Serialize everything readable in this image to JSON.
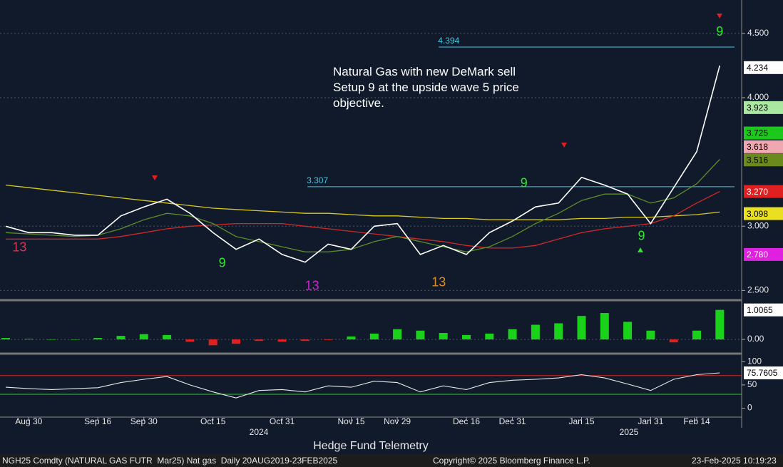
{
  "chart_data": [
    {
      "type": "line",
      "categories": [
        null,
        "Aug 30",
        null,
        null,
        "Sep 16",
        null,
        "Sep 30",
        null,
        null,
        "Oct 15",
        null,
        null,
        "Oct 31",
        null,
        null,
        "Nov 15",
        null,
        "Nov 29",
        null,
        null,
        "Dec 16",
        null,
        "Dec 31",
        null,
        null,
        "Jan 15",
        null,
        null,
        "Jan 31",
        null,
        "Feb 14",
        null
      ],
      "year_labels": [
        "2024",
        "2025"
      ],
      "series": [
        {
          "color": "#d8c820",
          "values": [
            3.32,
            3.3,
            3.28,
            3.26,
            3.24,
            3.22,
            3.2,
            3.18,
            3.16,
            3.14,
            3.13,
            3.12,
            3.11,
            3.1,
            3.1,
            3.09,
            3.08,
            3.08,
            3.07,
            3.06,
            3.06,
            3.05,
            3.05,
            3.05,
            3.05,
            3.06,
            3.06,
            3.07,
            3.07,
            3.08,
            3.09,
            3.11
          ]
        },
        {
          "color": "#d02828",
          "values": [
            2.9,
            2.9,
            2.9,
            2.9,
            2.9,
            2.92,
            2.95,
            2.98,
            3.0,
            3.01,
            3.02,
            3.02,
            3.02,
            3.0,
            2.98,
            2.96,
            2.94,
            2.92,
            2.9,
            2.88,
            2.85,
            2.83,
            2.83,
            2.85,
            2.9,
            2.95,
            2.98,
            3.0,
            3.02,
            3.08,
            3.18,
            3.27
          ]
        },
        {
          "color": "#5c8c2a",
          "values": [
            2.95,
            2.94,
            2.93,
            2.92,
            2.93,
            2.98,
            3.05,
            3.1,
            3.08,
            3.02,
            2.92,
            2.88,
            2.84,
            2.8,
            2.8,
            2.82,
            2.88,
            2.92,
            2.88,
            2.84,
            2.8,
            2.84,
            2.92,
            3.02,
            3.1,
            3.2,
            3.25,
            3.25,
            3.18,
            3.22,
            3.33,
            3.52
          ]
        },
        {
          "color": "#ffffff",
          "values": [
            3.0,
            2.95,
            2.95,
            2.93,
            2.93,
            3.08,
            3.15,
            3.21,
            3.1,
            2.95,
            2.82,
            2.9,
            2.78,
            2.72,
            2.86,
            2.82,
            3.0,
            3.02,
            2.78,
            2.85,
            2.78,
            2.95,
            3.04,
            3.15,
            3.18,
            3.38,
            3.32,
            3.25,
            3.02,
            3.3,
            3.58,
            4.25
          ]
        }
      ],
      "ylim": [
        2.43,
        4.76
      ],
      "yticks": [
        {
          "value": 2.5,
          "label": "2.500"
        },
        {
          "value": 3,
          "label": "3.000"
        },
        {
          "value": 4,
          "label": "4.000"
        },
        {
          "value": 4.5,
          "label": "4.500"
        }
      ],
      "grid": true,
      "reference_lines": [
        {
          "value": 4.394,
          "color": "#40c8e0"
        },
        {
          "value": 3.307,
          "color": "#40c8e0"
        }
      ],
      "price_levels": [
        {
          "value": 4.234,
          "color": "#ffffff",
          "text_color": "#000000"
        },
        {
          "value": 3.923,
          "color": "#a8e8a0",
          "text_color": "#000000"
        },
        {
          "value": 3.725,
          "color": "#1cc81c",
          "text_color": "#000000"
        },
        {
          "value": 3.618,
          "color": "#f0a8b0",
          "text_color": "#000000"
        },
        {
          "value": 3.516,
          "color": "#6a8a1e",
          "text_color": "#000000"
        },
        {
          "value": 3.27,
          "label": "3.270",
          "color": "#e02020",
          "text_color": "#ffffff"
        },
        {
          "value": 3.098,
          "color": "#e8e020",
          "text_color": "#000000"
        },
        {
          "value": 2.78,
          "label": "2.780",
          "color": "#e020e0",
          "text_color": "#ffffff"
        }
      ],
      "counts": [
        {
          "label": "13",
          "x": 0.6,
          "value": 2.83,
          "color": "#e03050"
        },
        {
          "label": "9",
          "x": 9.4,
          "value": 2.71,
          "color": "#2ee62e"
        },
        {
          "label": "13",
          "x": 13.3,
          "value": 2.53,
          "color": "#d020d0"
        },
        {
          "label": "13",
          "x": 18.8,
          "value": 2.56,
          "color": "#e08a20"
        },
        {
          "label": "9",
          "x": 22.5,
          "value": 3.33,
          "color": "#2ee62e"
        },
        {
          "label": "9",
          "x": 27.6,
          "value": 2.92,
          "color": "#2ee62e"
        },
        {
          "label": "9",
          "x": 31,
          "value": 4.51,
          "color": "#2ee62e"
        }
      ],
      "annotation": "Natural Gas with new DeMark sell Setup 9 at the upside wave 5 price objective."
    },
    {
      "type": "bar",
      "values": [
        0.05,
        0.02,
        0.0,
        0.0,
        0.05,
        0.12,
        0.18,
        0.15,
        -0.08,
        -0.2,
        -0.15,
        -0.05,
        -0.08,
        -0.05,
        -0.02,
        0.1,
        0.2,
        0.35,
        0.3,
        0.22,
        0.15,
        0.2,
        0.35,
        0.5,
        0.55,
        0.8,
        0.9,
        0.6,
        0.3,
        -0.1,
        0.3,
        1.0065
      ],
      "colors": {
        "positive": "#19d219",
        "negative": "#e02020"
      },
      "ylim": [
        -0.46,
        1.29
      ],
      "yticks": [
        {
          "value": 0,
          "label": "0.00"
        }
      ]
    },
    {
      "type": "line",
      "color": "#e8e8e8",
      "values": [
        45,
        42,
        40,
        42,
        44,
        55,
        62,
        68,
        50,
        35,
        22,
        38,
        40,
        35,
        48,
        45,
        58,
        55,
        35,
        48,
        40,
        55,
        60,
        62,
        65,
        72,
        65,
        52,
        38,
        62,
        72,
        75.7605
      ],
      "ylim": [
        -19,
        114
      ],
      "yticks": [
        0,
        50,
        100
      ],
      "bands": [
        {
          "value": 70,
          "color": "#d02828"
        },
        {
          "value": 30,
          "color": "#2ec82e"
        }
      ]
    }
  ],
  "footer": {
    "title": "Hedge Fund Telemetry",
    "ticker": "NGH25 Comdty (NATURAL GAS FUTR  Mar25) Nat gas  Daily 20AUG2019-23FEB2025",
    "copyright": "Copyright© 2025 Bloomberg Finance L.P.",
    "timestamp": "23-Feb-2025 10:19:23"
  }
}
